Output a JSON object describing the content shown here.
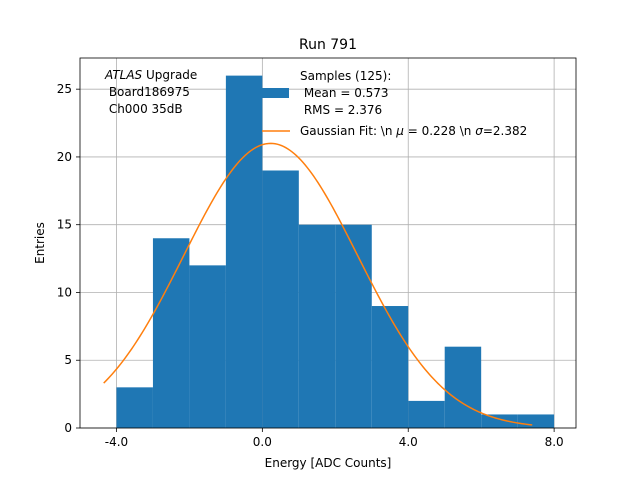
{
  "chart_data": {
    "type": "bar",
    "title": "Run 791",
    "xlabel": "Energy [ADC Counts]",
    "ylabel": "Entries",
    "xlim": [
      -5.0,
      8.6
    ],
    "ylim": [
      0,
      27.3
    ],
    "grid": true,
    "x_ticks": [
      -4.0,
      0.0,
      4.0,
      8.0
    ],
    "x_tick_labels": [
      "-4.0",
      "0.0",
      "4.0",
      "8.0"
    ],
    "y_ticks": [
      0,
      5,
      10,
      15,
      20,
      25
    ],
    "y_tick_labels": [
      "0",
      "5",
      "10",
      "15",
      "20",
      "25"
    ],
    "histogram": {
      "bin_edges": [
        -4,
        -3,
        -2,
        -1,
        0,
        1,
        2,
        3,
        4,
        5,
        6,
        7,
        8
      ],
      "counts": [
        3,
        14,
        12,
        26,
        19,
        15,
        15,
        9,
        2,
        6,
        1,
        1
      ],
      "color": "#1f77b4"
    },
    "fit": {
      "amplitude": 21.0,
      "mu": 0.228,
      "sigma": 2.382,
      "x_range": [
        -4.35,
        7.4
      ],
      "color": "#ff7f0e"
    },
    "annotation": {
      "atlas": "ATLAS",
      "upgrade": " Upgrade",
      "line2": " Board186975",
      "line3": " Ch000 35dB"
    },
    "legend": {
      "placement": "top-right",
      "samples_line1": "Samples (125):",
      "samples_line2": " Mean = 0.573",
      "samples_line3": " RMS = 2.376",
      "fit_prefix": "Gaussian Fit: \\n ",
      "fit_mu_sym": "μ",
      "fit_mid": " = 0.228 \\n ",
      "fit_sigma_sym": "σ",
      "fit_suffix": "=2.382"
    }
  }
}
